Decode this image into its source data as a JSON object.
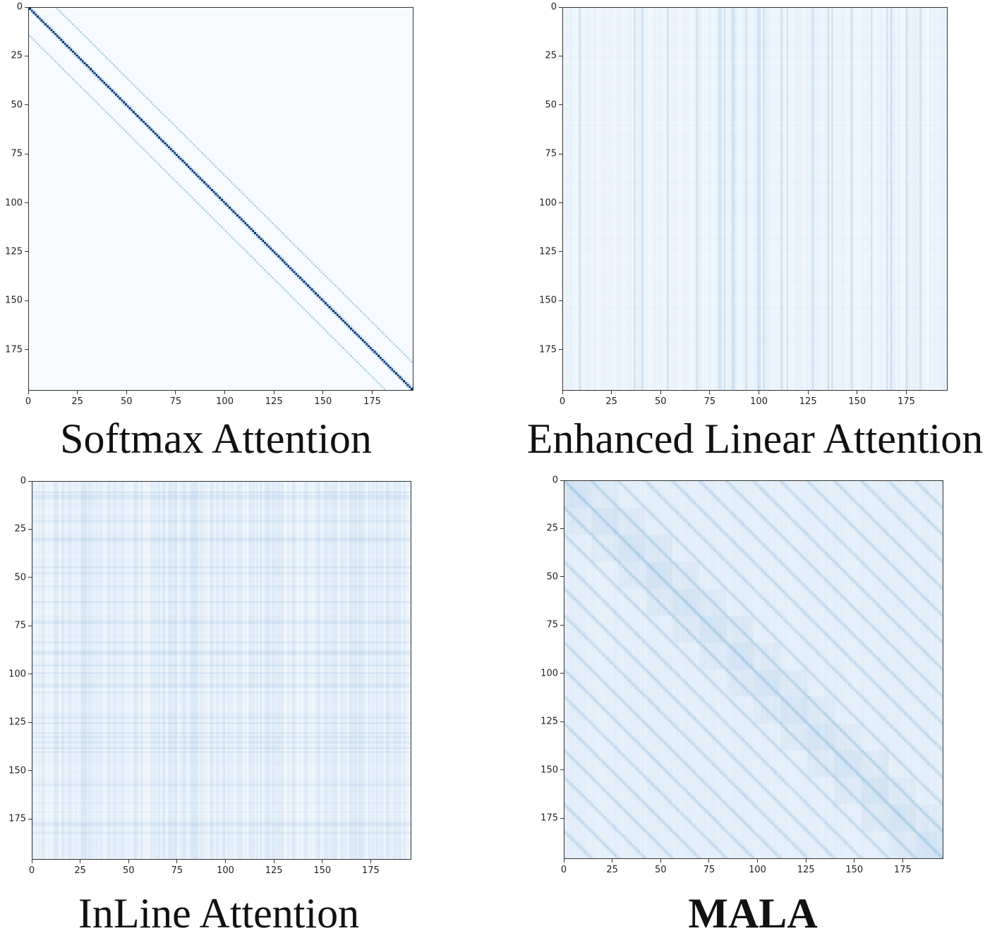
{
  "chart_data": [
    {
      "type": "heatmap",
      "title": "Softmax Attention",
      "pattern": "diagonal",
      "colormap": "Blues",
      "xlim": [
        0,
        196
      ],
      "ylim": [
        196,
        0
      ],
      "xticks": [
        0,
        25,
        50,
        75,
        100,
        125,
        150,
        175
      ],
      "yticks": [
        0,
        25,
        50,
        75,
        100,
        125,
        150,
        175
      ]
    },
    {
      "type": "heatmap",
      "title": "Enhanced Linear Attention",
      "pattern": "column-stripes",
      "colormap": "Blues",
      "xlim": [
        0,
        196
      ],
      "ylim": [
        196,
        0
      ],
      "xticks": [
        0,
        25,
        50,
        75,
        100,
        125,
        150,
        175
      ],
      "yticks": [
        0,
        25,
        50,
        75,
        100,
        125,
        150,
        175
      ]
    },
    {
      "type": "heatmap",
      "title": "InLine Attention",
      "pattern": "grid-stripes",
      "colormap": "Blues",
      "xlim": [
        0,
        196
      ],
      "ylim": [
        196,
        0
      ],
      "xticks": [
        0,
        25,
        50,
        75,
        100,
        125,
        150,
        175
      ],
      "yticks": [
        0,
        25,
        50,
        75,
        100,
        125,
        150,
        175
      ]
    },
    {
      "type": "heatmap",
      "title": "MALA",
      "title_bold": true,
      "pattern": "multi-diagonal",
      "colormap": "Blues",
      "xlim": [
        0,
        196
      ],
      "ylim": [
        196,
        0
      ],
      "xticks": [
        0,
        25,
        50,
        75,
        100,
        125,
        150,
        175
      ],
      "yticks": [
        0,
        25,
        50,
        75,
        100,
        125,
        150,
        175
      ]
    }
  ]
}
